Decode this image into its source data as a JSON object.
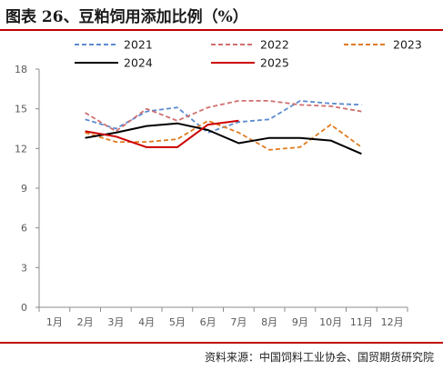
{
  "header": {
    "title": "图表 26、豆粕饲用添加比例（%）"
  },
  "footer": {
    "source": "资料来源：中国饲料工业协会、国贸期货研究院"
  },
  "chart_data": {
    "type": "line",
    "categories": [
      "1月",
      "2月",
      "3月",
      "4月",
      "5月",
      "6月",
      "7月",
      "8月",
      "9月",
      "10月",
      "11月",
      "12月"
    ],
    "ylim": [
      0,
      18
    ],
    "yticks": [
      0,
      3,
      6,
      9,
      12,
      15,
      18
    ],
    "grid": false,
    "legend_position": "top",
    "series": [
      {
        "name": "2021",
        "color": "#5b8bd0",
        "dash": "dashed",
        "values": [
          null,
          14.2,
          13.5,
          14.8,
          15.1,
          13.2,
          14.0,
          14.2,
          15.6,
          15.4,
          15.3,
          null
        ]
      },
      {
        "name": "2022",
        "color": "#d06f6f",
        "dash": "dashed",
        "values": [
          null,
          14.7,
          13.3,
          15.0,
          14.1,
          15.1,
          15.6,
          15.6,
          15.3,
          15.2,
          14.8,
          null
        ]
      },
      {
        "name": "2023",
        "color": "#e07b1f",
        "dash": "dashed",
        "values": [
          null,
          13.2,
          12.5,
          12.5,
          12.7,
          14.1,
          13.2,
          11.9,
          12.1,
          13.8,
          12.1,
          null
        ]
      },
      {
        "name": "2024",
        "color": "#000000",
        "dash": "solid",
        "values": [
          null,
          12.8,
          13.2,
          13.7,
          13.9,
          13.4,
          12.4,
          12.8,
          12.8,
          12.6,
          11.6,
          null
        ]
      },
      {
        "name": "2025",
        "color": "#cc0000",
        "dash": "solid",
        "values": [
          null,
          13.3,
          12.9,
          12.1,
          12.1,
          13.8,
          14.1,
          null,
          null,
          null,
          null,
          null
        ]
      }
    ]
  }
}
